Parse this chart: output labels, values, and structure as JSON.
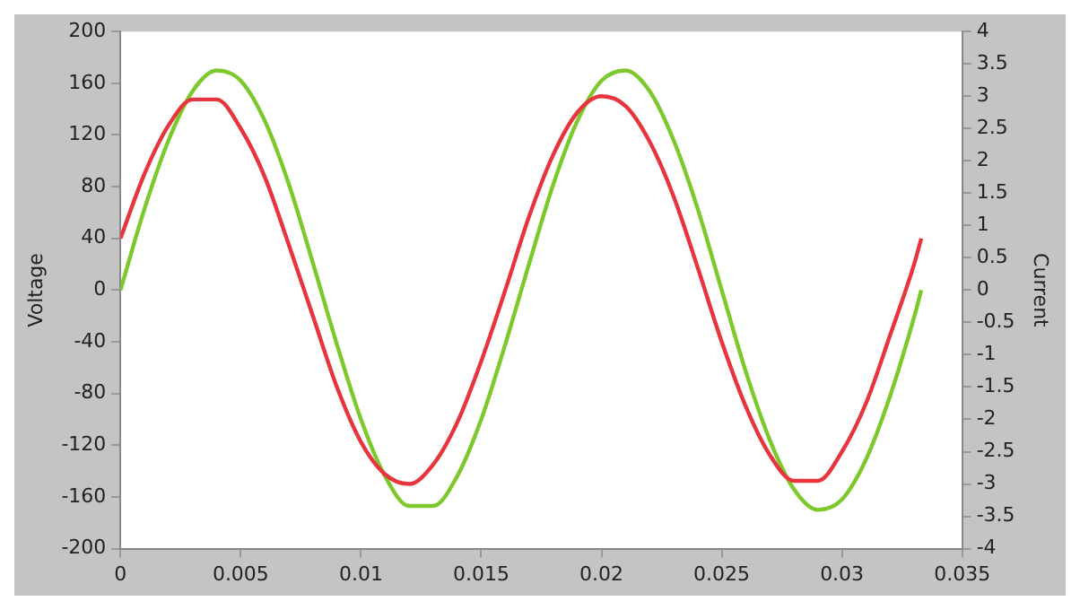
{
  "chart_data": {
    "type": "line",
    "xlabel": null,
    "ylabel": "Voltage",
    "y2label": "Current",
    "xlim": [
      0,
      0.035
    ],
    "xticks": [
      0,
      0.005,
      0.01,
      0.015,
      0.02,
      0.025,
      0.03,
      0.035
    ],
    "ylim": [
      -200,
      200
    ],
    "yticks": [
      -200,
      -160,
      -120,
      -80,
      -40,
      0,
      40,
      80,
      120,
      160,
      200
    ],
    "y2lim": [
      -4,
      4
    ],
    "y2ticks": [
      -4,
      -3.5,
      -3,
      -2.5,
      -2,
      -1.5,
      -1,
      -0.5,
      0,
      0.5,
      1,
      1.5,
      2,
      2.5,
      3,
      3.5,
      4
    ],
    "grid": false,
    "legend": false,
    "marker": "none",
    "line_style": "solid",
    "series": [
      {
        "color": "#e8343c",
        "axis": "y2",
        "x": [
          0,
          0.001,
          0.002,
          0.003,
          0.004,
          0.005,
          0.006,
          0.007,
          0.008,
          0.009,
          0.01,
          0.011,
          0.012,
          0.013,
          0.014,
          0.015,
          0.016,
          0.017,
          0.018,
          0.019,
          0.02,
          0.021,
          0.022,
          0.023,
          0.024,
          0.025,
          0.026,
          0.027,
          0.028,
          0.029,
          0.03,
          0.031,
          0.032,
          0.033,
          0.0333
        ],
        "values": [
          0.8,
          1.8,
          2.55,
          2.95,
          2.95,
          2.5,
          1.75,
          0.7,
          -0.4,
          -1.5,
          -2.35,
          -2.85,
          -3,
          -2.7,
          -2.05,
          -1.1,
          0,
          1.15,
          2.1,
          2.75,
          3,
          2.85,
          2.3,
          1.45,
          0.35,
          -0.8,
          -1.8,
          -2.55,
          -2.95,
          -2.95,
          -2.5,
          -1.75,
          -0.7,
          0.4,
          0.8
        ]
      },
      {
        "color": "#7cc92c",
        "axis": "y",
        "x": [
          0,
          0.001,
          0.002,
          0.003,
          0.004,
          0.005,
          0.006,
          0.007,
          0.008,
          0.009,
          0.01,
          0.011,
          0.012,
          0.013,
          0.014,
          0.015,
          0.016,
          0.017,
          0.018,
          0.019,
          0.02,
          0.021,
          0.022,
          0.023,
          0.024,
          0.025,
          0.026,
          0.027,
          0.028,
          0.029,
          0.03,
          0.031,
          0.032,
          0.033,
          0.0333
        ],
        "values": [
          0,
          63,
          116,
          154,
          170,
          162,
          131,
          82,
          21,
          -42,
          -100,
          -144,
          -167,
          -167,
          -144,
          -100,
          -42,
          21,
          82,
          131,
          162,
          170,
          154,
          116,
          63,
          0,
          -63,
          -116,
          -154,
          -170,
          -162,
          -131,
          -82,
          -21,
          0
        ]
      }
    ]
  }
}
